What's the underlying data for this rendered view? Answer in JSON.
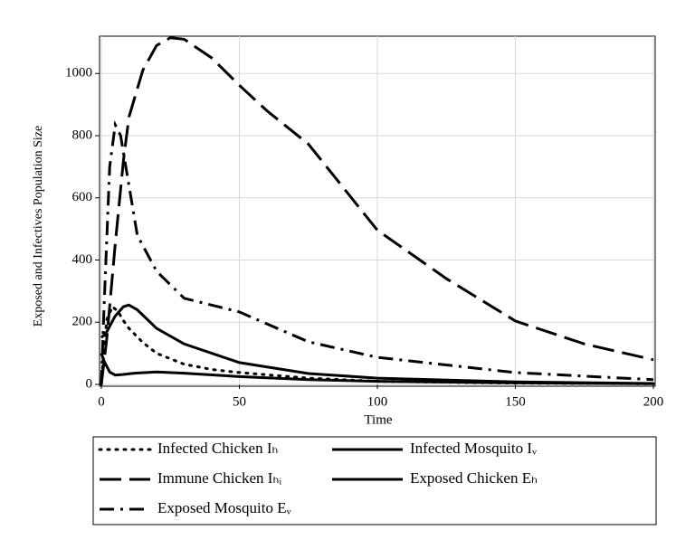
{
  "chart_data": {
    "type": "line",
    "xlabel": "Time",
    "ylabel": "Exposed and Infectives Population Size",
    "xlim": [
      0,
      200
    ],
    "ylim": [
      0,
      1120
    ],
    "xticks": [
      0,
      50,
      100,
      150,
      200
    ],
    "yticks": [
      0,
      200,
      400,
      600,
      800,
      1000
    ],
    "grid": true,
    "series": [
      {
        "name": "Infected Chicken Iₕ",
        "color": "#000000",
        "style": "dotted",
        "x": [
          0,
          1,
          2,
          4,
          6,
          8,
          10,
          15,
          20,
          30,
          40,
          50,
          75,
          100,
          150,
          200
        ],
        "values": [
          0,
          120,
          210,
          250,
          235,
          205,
          180,
          135,
          100,
          65,
          48,
          38,
          20,
          10,
          4,
          2
        ]
      },
      {
        "name": "Infected Mosquito Iᵥ",
        "color": "#000000",
        "style": "solid",
        "x": [
          0,
          1,
          3,
          5,
          8,
          12,
          20,
          30,
          50,
          75,
          100,
          150,
          200
        ],
        "values": [
          100,
          75,
          40,
          30,
          32,
          36,
          40,
          36,
          25,
          15,
          10,
          5,
          2
        ]
      },
      {
        "name": "Immune Chicken Iₕᵢ",
        "color": "#000000",
        "style": "longdash",
        "x": [
          0,
          2,
          5,
          8,
          10,
          15,
          20,
          25,
          30,
          40,
          50,
          60,
          75,
          100,
          125,
          150,
          175,
          200
        ],
        "values": [
          0,
          150,
          450,
          720,
          860,
          1010,
          1090,
          1115,
          1110,
          1050,
          962,
          880,
          773,
          496,
          340,
          204,
          130,
          79
        ]
      },
      {
        "name": "Exposed Chicken Eₕ",
        "color": "#000000",
        "style": "solid",
        "x": [
          0,
          2,
          5,
          8,
          10,
          13,
          20,
          30,
          50,
          75,
          100,
          150,
          200
        ],
        "values": [
          150,
          170,
          220,
          250,
          255,
          240,
          180,
          130,
          70,
          35,
          20,
          8,
          3
        ]
      },
      {
        "name": "Exposed Mosquito Eᵥ",
        "color": "#000000",
        "style": "dashdot",
        "x": [
          0,
          1,
          3,
          5,
          7,
          10,
          13,
          20,
          30,
          50,
          75,
          100,
          150,
          200
        ],
        "values": [
          0,
          250,
          700,
          835,
          800,
          640,
          480,
          364,
          277,
          233,
          137,
          87,
          38,
          15
        ]
      }
    ]
  }
}
